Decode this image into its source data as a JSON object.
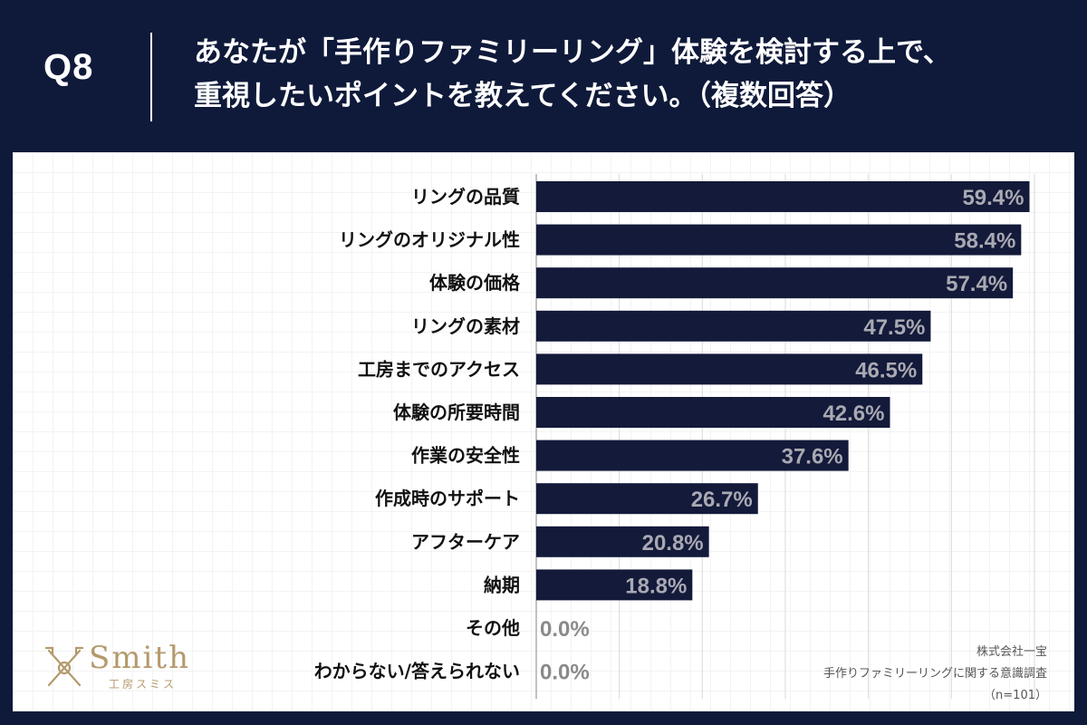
{
  "header": {
    "q_label": "Q8",
    "question_line1": "あなたが「手作りファミリーリング」体験を検討する上で、",
    "question_line2": "重視したいポイントを教えてください。（複数回答）"
  },
  "chart_data": {
    "type": "bar",
    "orientation": "horizontal",
    "categories": [
      "リングの品質",
      "リングのオリジナル性",
      "体験の価格",
      "リングの素材",
      "工房までのアクセス",
      "体験の所要時間",
      "作業の安全性",
      "作成時のサポート",
      "アフターケア",
      "納期",
      "その他",
      "わからない/答えられない"
    ],
    "values": [
      59.4,
      58.4,
      57.4,
      47.5,
      46.5,
      42.6,
      37.6,
      26.7,
      20.8,
      18.8,
      0.0,
      0.0
    ],
    "value_labels": [
      "59.4%",
      "58.4%",
      "57.4%",
      "47.5%",
      "46.5%",
      "42.6%",
      "37.6%",
      "26.7%",
      "20.8%",
      "18.8%",
      "0.0%",
      "0.0%"
    ],
    "xlim": [
      0,
      60
    ],
    "grid": true,
    "colors": {
      "bar": "#131a3a",
      "value_label_inside": "#a9a9b2",
      "value_label_outside": "#8a8a8a",
      "gridline": "#d9d9d9"
    }
  },
  "branding": {
    "logo_name": "Smith",
    "logo_sub": "工房スミス",
    "logo_icon": "crossed-tools-icon",
    "logo_color": "#b49a6c"
  },
  "source": {
    "company": "株式会社一宝",
    "survey": "手作りファミリーリングに関する意識調査",
    "sample": "（n=101）"
  },
  "colors": {
    "background": "#0f1a3a",
    "panel": "#ffffff"
  }
}
